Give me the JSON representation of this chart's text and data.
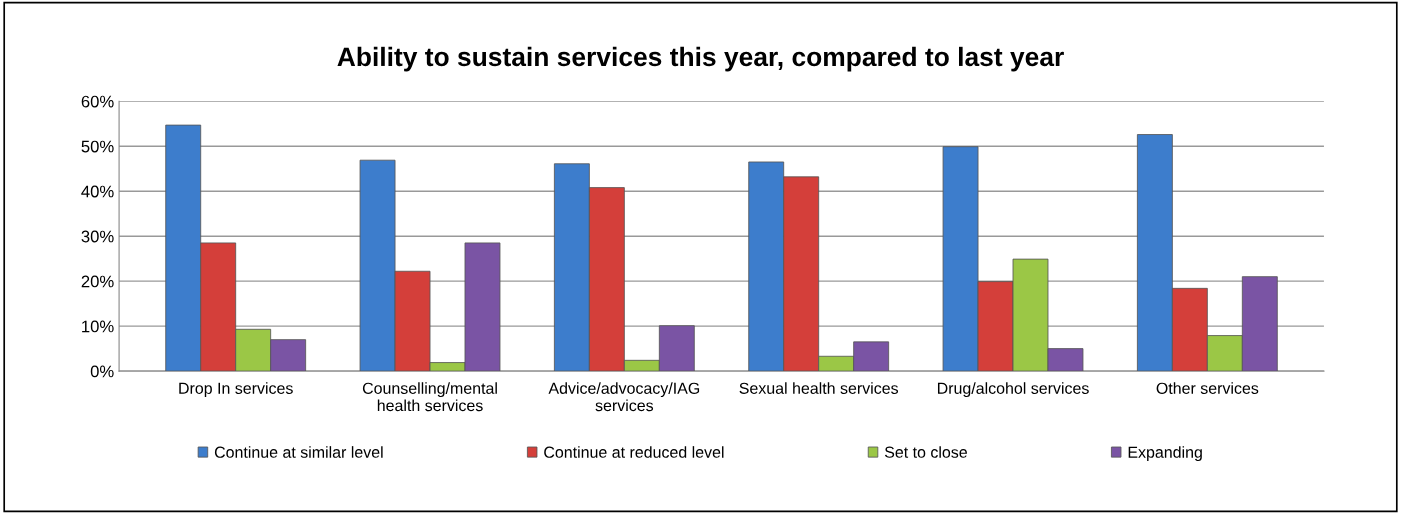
{
  "chart_data": {
    "type": "bar",
    "title": "Ability to sustain services this year, compared to last year",
    "categories": [
      "Drop In services",
      "Counselling/mental\nhealth services",
      "Advice/advocacy/IAG\nservices",
      "Sexual health services",
      "Drug/alcohol services",
      "Other services"
    ],
    "series": [
      {
        "name": "Continue at similar level",
        "color": "#3d7dcc",
        "values": [
          54.7,
          46.9,
          46.1,
          46.5,
          49.9,
          52.6
        ]
      },
      {
        "name": "Continue at reduced level",
        "color": "#d43f3a",
        "values": [
          28.5,
          22.2,
          40.8,
          43.2,
          19.9,
          18.4
        ]
      },
      {
        "name": "Set to close",
        "color": "#9bc746",
        "values": [
          9.3,
          1.9,
          2.4,
          3.3,
          24.9,
          7.9
        ]
      },
      {
        "name": "Expanding",
        "color": "#7a54a4",
        "values": [
          7.0,
          28.5,
          10.1,
          6.5,
          5.0,
          21.0
        ]
      }
    ],
    "ylim": [
      0,
      60
    ],
    "yticks": [
      {
        "value": 0,
        "label": "0%"
      },
      {
        "value": 10,
        "label": "10%"
      },
      {
        "value": 20,
        "label": "20%"
      },
      {
        "value": 30,
        "label": "30%"
      },
      {
        "value": 40,
        "label": "40%"
      },
      {
        "value": 50,
        "label": "50%"
      },
      {
        "value": 60,
        "label": "60%"
      }
    ],
    "grid": "y",
    "legend": "bottom"
  }
}
